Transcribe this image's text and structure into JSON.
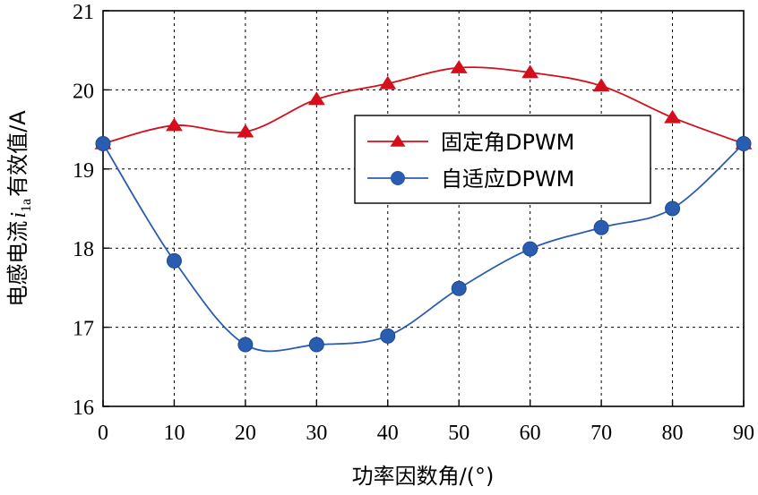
{
  "chart_data": {
    "type": "line",
    "x": [
      0,
      10,
      20,
      30,
      40,
      50,
      60,
      70,
      80,
      90
    ],
    "xlim": [
      0,
      90
    ],
    "ylim": [
      16,
      21
    ],
    "xticks": [
      0,
      10,
      20,
      30,
      40,
      50,
      60,
      70,
      80,
      90
    ],
    "yticks": [
      16,
      17,
      18,
      19,
      20,
      21
    ],
    "xlabel": "功率因数角/(°)",
    "ylabel_parts": {
      "before": "电感电流",
      "symbol": "i",
      "subscript": "1a",
      "after": "有效值/A"
    },
    "grid": true,
    "legend_position": "center-right",
    "series": [
      {
        "name": "固定角DPWM",
        "marker": "triangle",
        "color": "#d40f1b",
        "values": [
          19.32,
          19.55,
          19.47,
          19.88,
          20.08,
          20.28,
          20.22,
          20.05,
          19.65,
          19.32
        ]
      },
      {
        "name": "自适应DPWM",
        "marker": "circle",
        "color": "#2a5db0",
        "values": [
          19.32,
          17.84,
          16.78,
          16.78,
          16.89,
          17.49,
          17.99,
          18.26,
          18.5,
          19.32
        ]
      }
    ]
  }
}
